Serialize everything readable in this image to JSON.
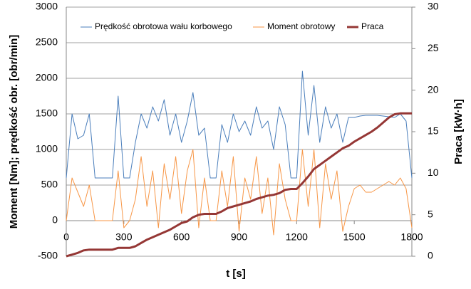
{
  "chart_data": {
    "type": "line",
    "x_label": "t [s]",
    "y_label": "Moment [Nm]; prędkość obr. [obr/min]",
    "y2_label": "Praca [kW·h]",
    "x": [
      0,
      30,
      60,
      90,
      120,
      150,
      180,
      210,
      240,
      270,
      300,
      330,
      360,
      390,
      420,
      450,
      480,
      510,
      540,
      570,
      600,
      630,
      660,
      690,
      720,
      750,
      780,
      810,
      840,
      870,
      900,
      930,
      960,
      990,
      1020,
      1050,
      1080,
      1110,
      1140,
      1170,
      1200,
      1230,
      1260,
      1290,
      1320,
      1350,
      1380,
      1410,
      1440,
      1470,
      1500,
      1530,
      1560,
      1590,
      1620,
      1650,
      1680,
      1710,
      1740,
      1770,
      1800
    ],
    "series": [
      {
        "name": "Prędkość obrotowa wału korbowego",
        "color": "#4a7ebb",
        "width": 1,
        "values": [
          600,
          1500,
          1150,
          1200,
          1500,
          600,
          600,
          600,
          600,
          1750,
          600,
          600,
          1100,
          1500,
          1300,
          1600,
          1400,
          1700,
          1200,
          1500,
          1100,
          1400,
          1800,
          1200,
          1300,
          600,
          600,
          1350,
          1100,
          1500,
          1250,
          1400,
          1200,
          1600,
          1300,
          1400,
          1000,
          1600,
          1350,
          600,
          600,
          2100,
          1200,
          1900,
          1100,
          1600,
          1300,
          1500,
          1100,
          1450,
          1450,
          1470,
          1480,
          1480,
          1480,
          1470,
          1460,
          1450,
          1500,
          1400,
          600
        ]
      },
      {
        "name": "Moment obrotowy",
        "color": "#f79646",
        "width": 1,
        "values": [
          0,
          600,
          400,
          200,
          500,
          0,
          0,
          0,
          0,
          700,
          -100,
          0,
          300,
          900,
          200,
          700,
          -100,
          800,
          300,
          900,
          100,
          700,
          1000,
          -100,
          600,
          0,
          0,
          700,
          200,
          900,
          -150,
          600,
          300,
          900,
          100,
          600,
          -200,
          800,
          300,
          0,
          0,
          1000,
          200,
          1000,
          -100,
          800,
          300,
          700,
          -150,
          200,
          450,
          500,
          400,
          400,
          450,
          500,
          550,
          500,
          600,
          450,
          -100
        ]
      },
      {
        "name": "Praca",
        "color": "#953735",
        "width": 3,
        "axis": "y2",
        "values": [
          0,
          0.2,
          0.4,
          0.7,
          0.8,
          0.8,
          0.8,
          0.8,
          0.8,
          1.0,
          1.0,
          1.0,
          1.2,
          1.6,
          2.0,
          2.3,
          2.6,
          2.9,
          3.2,
          3.6,
          4.0,
          4.2,
          4.7,
          5.0,
          5.1,
          5.1,
          5.1,
          5.4,
          5.8,
          6.0,
          6.2,
          6.4,
          6.6,
          6.9,
          7.1,
          7.3,
          7.4,
          7.6,
          8.0,
          8.1,
          8.1,
          8.8,
          9.6,
          10.5,
          11.0,
          11.5,
          12.0,
          12.5,
          13.0,
          13.3,
          13.8,
          14.2,
          14.6,
          15.0,
          15.5,
          16.1,
          16.7,
          17.1,
          17.2,
          17.2,
          17.2
        ]
      }
    ],
    "xlim": [
      0,
      1800
    ],
    "xticks": [
      0,
      300,
      600,
      900,
      1200,
      1500,
      1800
    ],
    "ylim": [
      -500,
      3000
    ],
    "yticks": [
      -500,
      0,
      500,
      1000,
      1500,
      2000,
      2500,
      3000
    ],
    "y2lim": [
      0,
      30
    ],
    "y2ticks": [
      0,
      5,
      10,
      15,
      20,
      25,
      30
    ],
    "grid": true,
    "legend": "top"
  }
}
